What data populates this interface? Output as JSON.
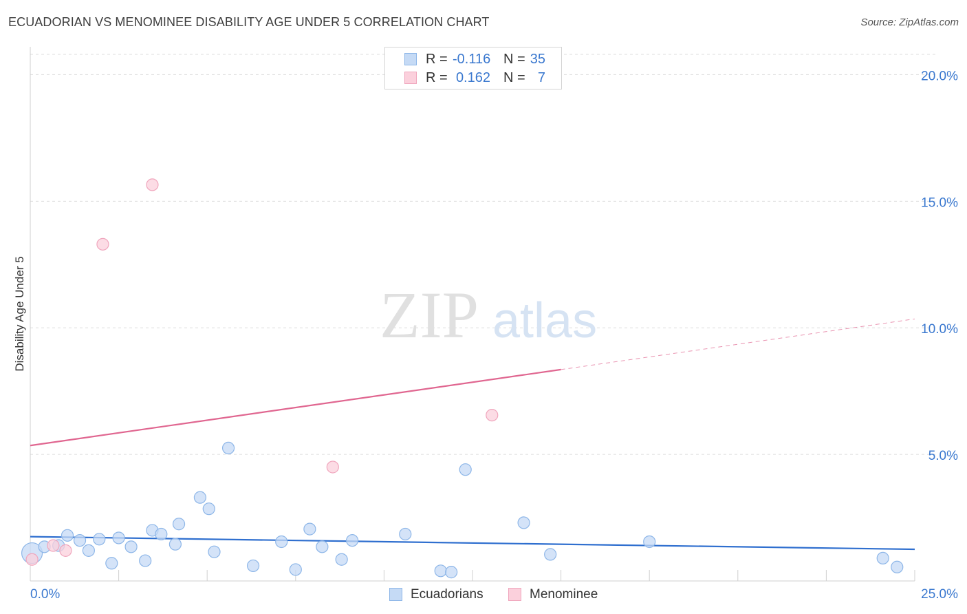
{
  "title": "ECUADORIAN VS MENOMINEE DISABILITY AGE UNDER 5 CORRELATION CHART",
  "source": "Source: ZipAtlas.com",
  "watermark": {
    "zip": "ZIP",
    "atlas": "atlas"
  },
  "legend_top": {
    "rows": [
      {
        "r_label": "R =",
        "r_value": "-0.116",
        "n_label": "N =",
        "n_value": "35"
      },
      {
        "r_label": "R =",
        "r_value": "0.162",
        "n_label": "N =",
        "n_value": "7"
      }
    ]
  },
  "chart_data": {
    "type": "scatter",
    "title": "ECUADORIAN VS MENOMINEE DISABILITY AGE UNDER 5 CORRELATION CHART",
    "ylabel": "Disability Age Under 5",
    "xlabel": "",
    "xlim": [
      0,
      25
    ],
    "ylim": [
      0,
      20.8
    ],
    "x_tick_labels": [
      {
        "x": 0,
        "label": "0.0%"
      },
      {
        "x": 25,
        "label": "25.0%"
      }
    ],
    "y_ticks": [
      {
        "y": 5,
        "label": "5.0%"
      },
      {
        "y": 10,
        "label": "10.0%"
      },
      {
        "y": 15,
        "label": "15.0%"
      },
      {
        "y": 20,
        "label": "20.0%"
      }
    ],
    "series": [
      {
        "name": "Ecuadorians",
        "color": "#8db6e8",
        "fill": "#c5daf5",
        "line_color": "#2f6fcf",
        "trend": {
          "x0": 0,
          "y0": 1.75,
          "x1": 25,
          "y1": 1.25
        },
        "points": [
          {
            "x": 0.05,
            "y": 1.1,
            "big": true
          },
          {
            "x": 0.4,
            "y": 1.35
          },
          {
            "x": 0.8,
            "y": 1.4
          },
          {
            "x": 1.05,
            "y": 1.8
          },
          {
            "x": 1.4,
            "y": 1.6
          },
          {
            "x": 1.65,
            "y": 1.2
          },
          {
            "x": 1.95,
            "y": 1.65
          },
          {
            "x": 2.3,
            "y": 0.7
          },
          {
            "x": 2.5,
            "y": 1.7
          },
          {
            "x": 2.85,
            "y": 1.35
          },
          {
            "x": 3.25,
            "y": 0.8
          },
          {
            "x": 3.45,
            "y": 2.0
          },
          {
            "x": 3.7,
            "y": 1.85
          },
          {
            "x": 4.1,
            "y": 1.45
          },
          {
            "x": 4.2,
            "y": 2.25
          },
          {
            "x": 4.8,
            "y": 3.3
          },
          {
            "x": 5.05,
            "y": 2.85
          },
          {
            "x": 5.2,
            "y": 1.15
          },
          {
            "x": 5.6,
            "y": 5.25
          },
          {
            "x": 6.3,
            "y": 0.6
          },
          {
            "x": 7.1,
            "y": 1.55
          },
          {
            "x": 7.5,
            "y": 0.45
          },
          {
            "x": 7.9,
            "y": 2.05
          },
          {
            "x": 8.25,
            "y": 1.35
          },
          {
            "x": 8.8,
            "y": 0.85
          },
          {
            "x": 9.1,
            "y": 1.6
          },
          {
            "x": 10.6,
            "y": 1.85
          },
          {
            "x": 11.6,
            "y": 0.4
          },
          {
            "x": 11.9,
            "y": 0.35
          },
          {
            "x": 12.3,
            "y": 4.4
          },
          {
            "x": 13.95,
            "y": 2.3
          },
          {
            "x": 14.7,
            "y": 1.05
          },
          {
            "x": 17.5,
            "y": 1.55
          },
          {
            "x": 24.1,
            "y": 0.9
          },
          {
            "x": 24.5,
            "y": 0.55
          }
        ]
      },
      {
        "name": "Menominee",
        "color": "#f0a6bd",
        "fill": "#fbd0dc",
        "line_color": "#e06690",
        "trend": {
          "x0": 0,
          "y0": 5.35,
          "x1": 15.0,
          "y1": 8.35,
          "dash_to_x": 25,
          "dash_to_y": 10.35
        },
        "points": [
          {
            "x": 0.05,
            "y": 0.85
          },
          {
            "x": 0.65,
            "y": 1.4
          },
          {
            "x": 1.0,
            "y": 1.2
          },
          {
            "x": 2.05,
            "y": 13.3
          },
          {
            "x": 3.45,
            "y": 15.65
          },
          {
            "x": 8.55,
            "y": 4.5
          },
          {
            "x": 13.05,
            "y": 6.55
          }
        ]
      }
    ]
  }
}
